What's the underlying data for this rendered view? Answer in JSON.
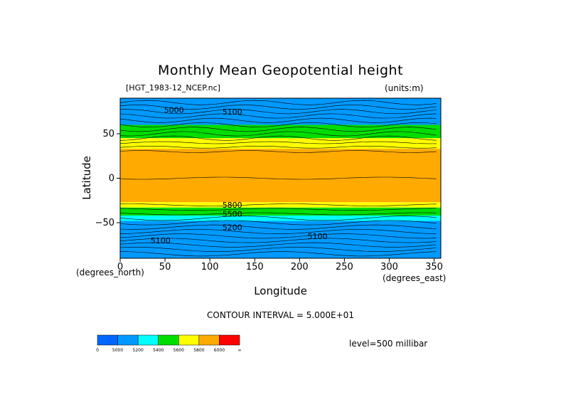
{
  "chart_data": {
    "type": "heatmap",
    "title": "Monthly Mean Geopotential height",
    "dataset": "[HGT_1983-12_NCEP.nc]",
    "units": "(units:m)",
    "xlabel": "Longitude",
    "ylabel": "Latitude",
    "x_unit": "(degrees_east)",
    "y_unit": "(degrees_north)",
    "xlim": [
      0,
      357.5
    ],
    "ylim": [
      -90,
      90
    ],
    "x_ticks": [
      0,
      50,
      100,
      150,
      200,
      250,
      300,
      350
    ],
    "y_ticks": [
      50,
      0,
      -50
    ],
    "contour_interval_text": "CONTOUR INTERVAL = 5.000E+01",
    "level_text": "level=500 millibar",
    "colorbar": {
      "labels": [
        "0",
        "5000",
        "5200",
        "5400",
        "5600",
        "5800",
        "6000",
        "∞"
      ],
      "colors": [
        "#0066ff",
        "#0099ff",
        "#00ffff",
        "#00dd00",
        "#ffff00",
        "#ffaa00",
        "#ff0000"
      ]
    },
    "bands": [
      {
        "lat": [
          90,
          60
        ],
        "color": "#0099ff"
      },
      {
        "lat": [
          60,
          45
        ],
        "color": "#00dd00"
      },
      {
        "lat": [
          45,
          33
        ],
        "color": "#ffff00"
      },
      {
        "lat": [
          33,
          -27
        ],
        "color": "#ffaa00"
      },
      {
        "lat": [
          -27,
          -33
        ],
        "color": "#ffff00"
      },
      {
        "lat": [
          -33,
          -42
        ],
        "color": "#00dd00"
      },
      {
        "lat": [
          -42,
          -48
        ],
        "color": "#00ffff"
      },
      {
        "lat": [
          -48,
          -90
        ],
        "color": "#0099ff"
      }
    ],
    "contour_labels": [
      {
        "lon": 60,
        "lat": 77,
        "text": "5000"
      },
      {
        "lon": 125,
        "lat": 75,
        "text": "5100"
      },
      {
        "lon": 45,
        "lat": -70,
        "text": "5100"
      },
      {
        "lon": 220,
        "lat": -65,
        "text": "5100"
      },
      {
        "lon": 125,
        "lat": -30,
        "text": "5800"
      },
      {
        "lon": 125,
        "lat": -40,
        "text": "5500"
      },
      {
        "lon": 125,
        "lat": -55,
        "text": "5200"
      }
    ]
  }
}
